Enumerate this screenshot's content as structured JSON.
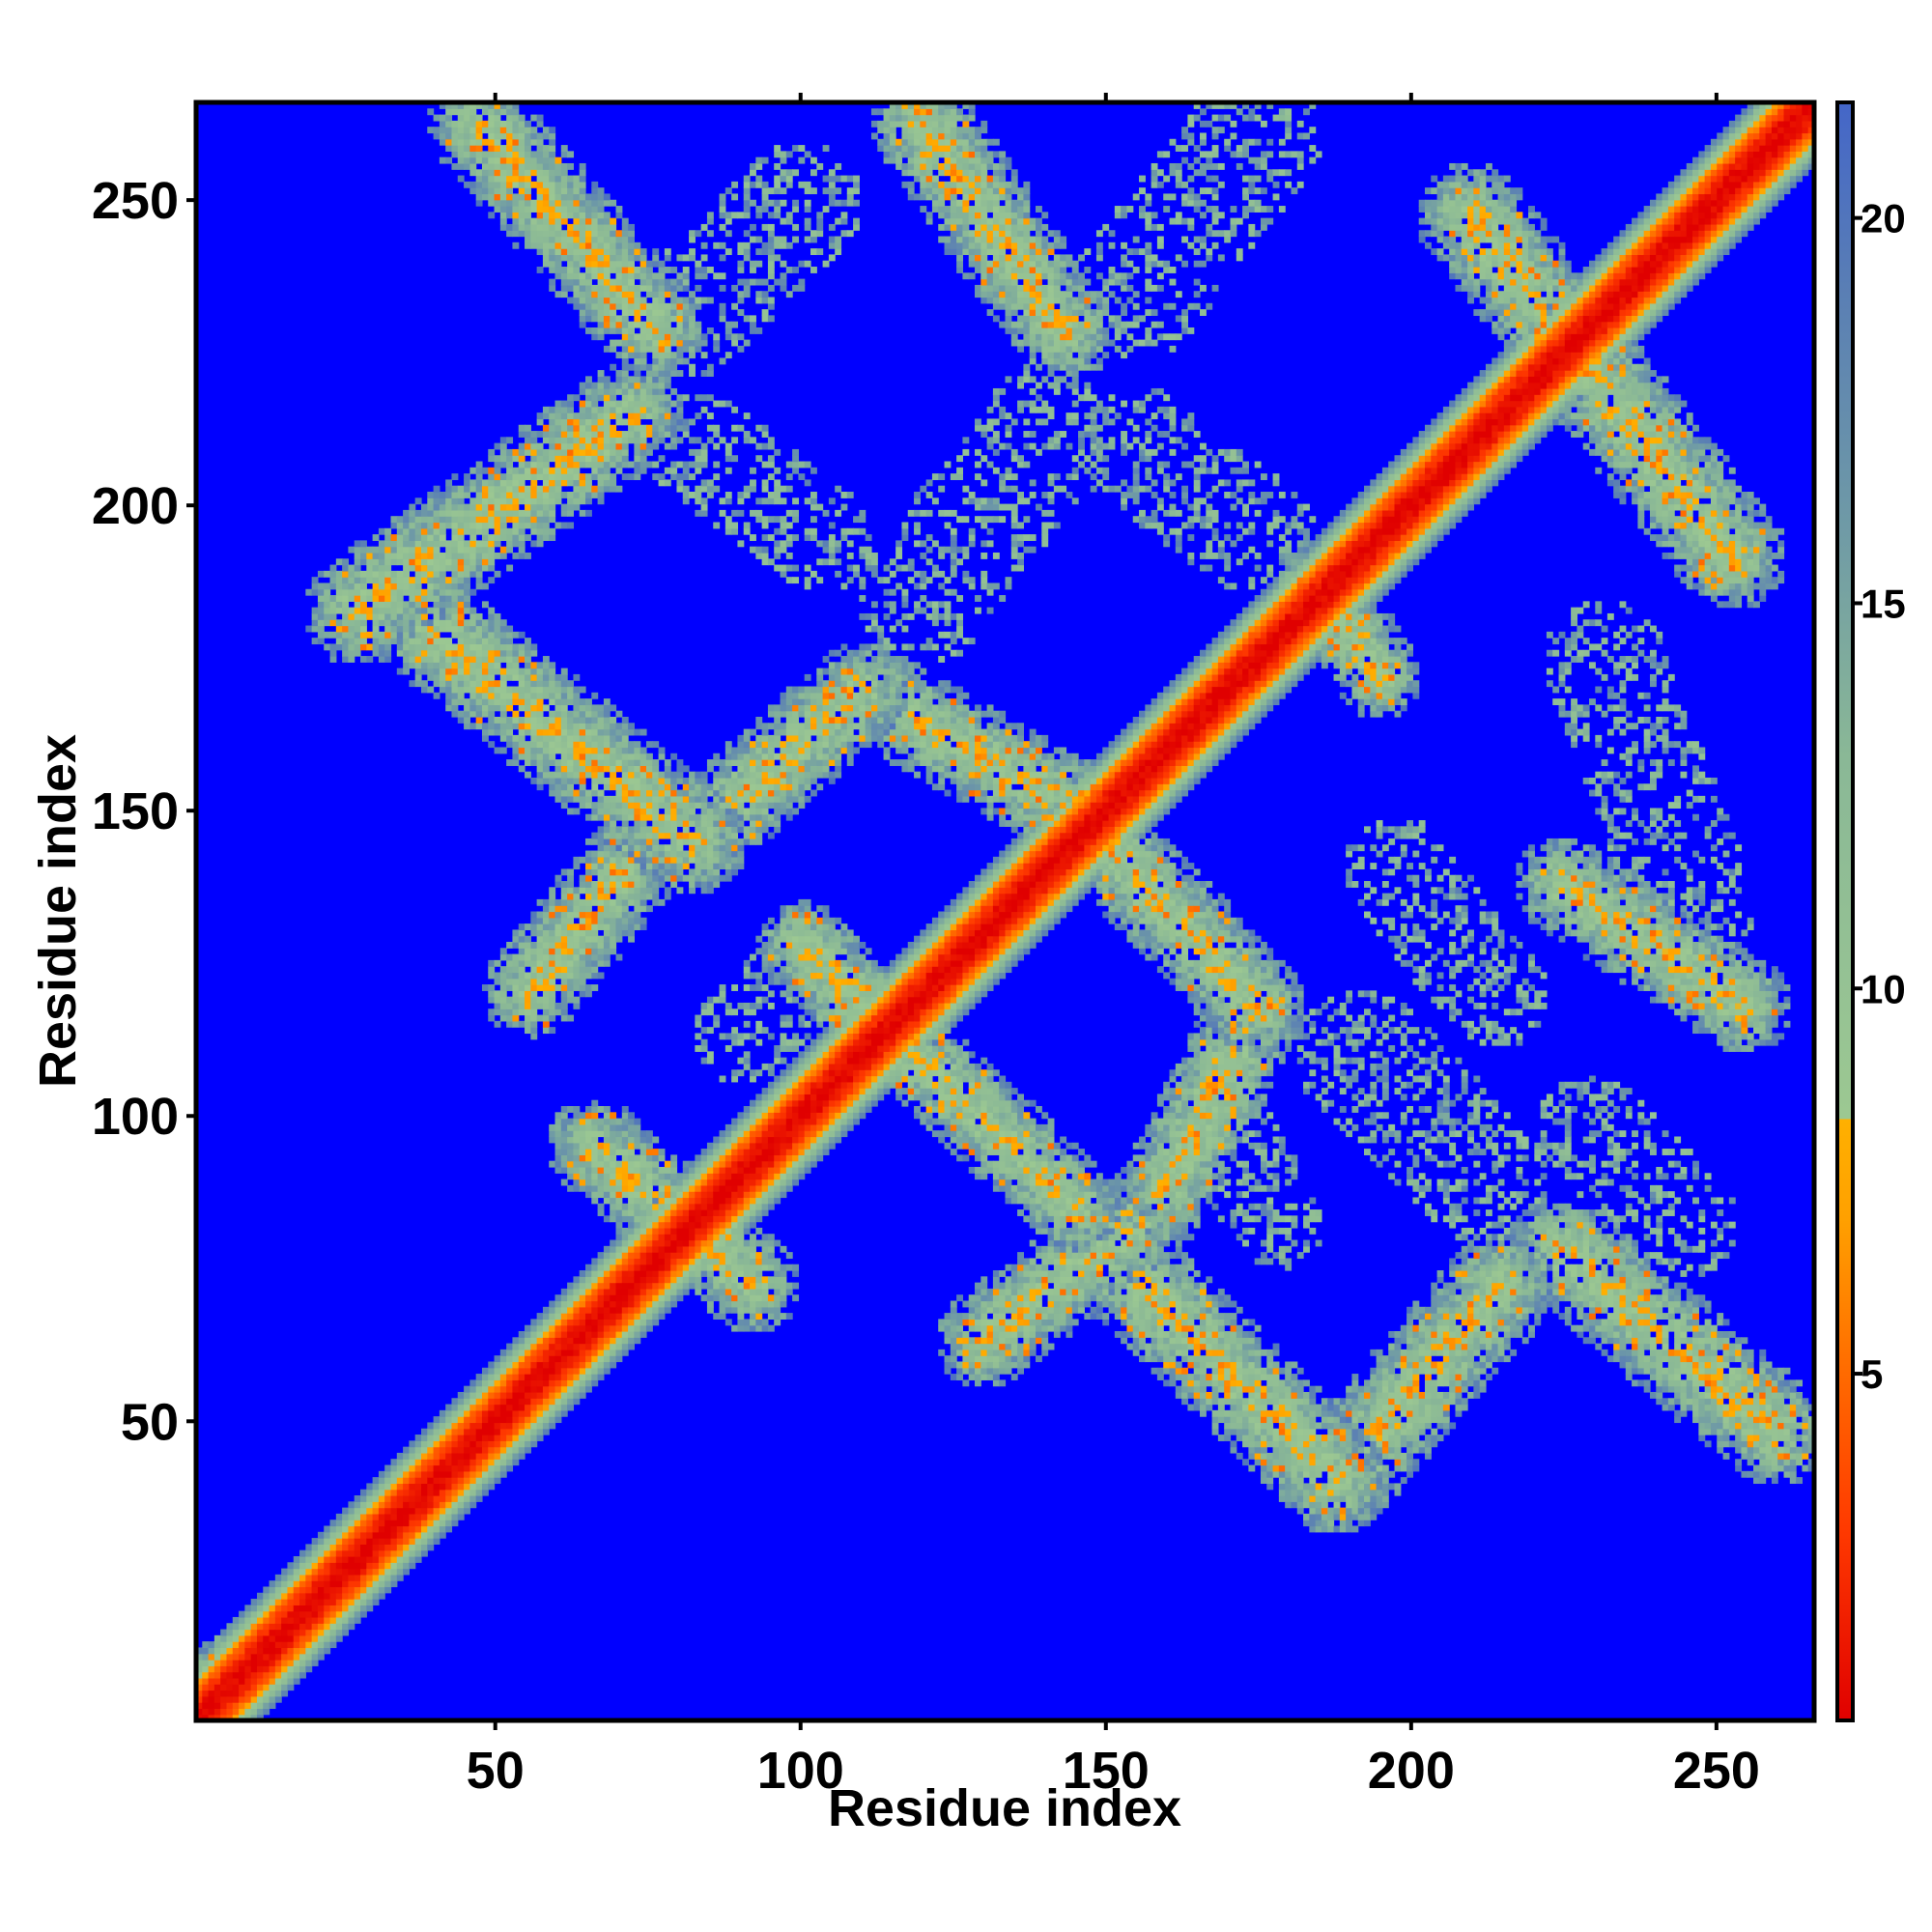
{
  "chart_data": {
    "type": "heatmap",
    "title": "",
    "xlabel": "Residue index",
    "ylabel": "Residue index",
    "xlim": [
      1,
      266
    ],
    "ylim": [
      1,
      266
    ],
    "x_ticks": [
      50,
      100,
      150,
      200,
      250
    ],
    "y_ticks": [
      50,
      100,
      150,
      200,
      250
    ],
    "colorbar": {
      "range": [
        0.5,
        21.5
      ],
      "ticks": [
        5,
        10,
        15,
        20
      ],
      "stops": [
        {
          "value": 0.5,
          "color": "#e00000"
        },
        {
          "value": 3.0,
          "color": "#ff3a00"
        },
        {
          "value": 5.0,
          "color": "#ff6a00"
        },
        {
          "value": 7.0,
          "color": "#ffa000"
        },
        {
          "value": 8.3,
          "color": "#ffb000"
        },
        {
          "value": 8.31,
          "color": "#9cc892"
        },
        {
          "value": 13.0,
          "color": "#8ab896"
        },
        {
          "value": 16.0,
          "color": "#6f9aa6"
        },
        {
          "value": 19.0,
          "color": "#5a7fb4"
        },
        {
          "value": 21.5,
          "color": "#4466c8"
        }
      ]
    },
    "background_color": "#0000ff",
    "diagonal": {
      "width": 7.5
    },
    "contact_bands": [
      {
        "points": [
          [
            47,
            263
          ],
          [
            76,
            229
          ]
        ],
        "width": 8.5
      },
      {
        "points": [
          [
            120,
            263
          ],
          [
            143,
            229
          ]
        ],
        "width": 8.5
      },
      {
        "points": [
          [
            210,
            248
          ],
          [
            253,
            192
          ]
        ],
        "width": 9.0
      },
      {
        "points": [
          [
            27,
            183
          ],
          [
            72,
            215
          ]
        ],
        "width": 9.0
      },
      {
        "points": [
          [
            33,
            185
          ],
          [
            82,
            145
          ]
        ],
        "width": 9.0
      },
      {
        "points": [
          [
            82,
            145
          ],
          [
            110,
            170
          ]
        ],
        "width": 8.0
      },
      {
        "points": [
          [
            110,
            170
          ],
          [
            145,
            150
          ]
        ],
        "width": 8.0
      },
      {
        "points": [
          [
            145,
            150
          ],
          [
            175,
            118
          ]
        ],
        "width": 8.0
      },
      {
        "points": [
          [
            175,
            118
          ],
          [
            160,
            88
          ]
        ],
        "width": 8.0
      },
      {
        "points": [
          [
            55,
            120
          ],
          [
            75,
            145
          ]
        ],
        "width": 8.0
      },
      {
        "points": [
          [
            100,
            128
          ],
          [
            145,
            85
          ]
        ],
        "width": 7.5
      },
      {
        "points": [
          [
            66,
            95
          ],
          [
            92,
            72
          ]
        ],
        "width": 8.0
      },
      {
        "points": [
          [
            130,
            63
          ],
          [
            158,
            85
          ]
        ],
        "width": 8.0
      },
      {
        "points": [
          [
            150,
            78
          ],
          [
            188,
            40
          ]
        ],
        "width": 9.0
      },
      {
        "points": [
          [
            188,
            40
          ],
          [
            215,
            72
          ]
        ],
        "width": 9.0
      },
      {
        "points": [
          [
            225,
            78
          ],
          [
            260,
            48
          ]
        ],
        "width": 9.0
      },
      {
        "points": [
          [
            225,
            138
          ],
          [
            255,
            118
          ]
        ],
        "width": 8.0
      },
      {
        "points": [
          [
            185,
            188
          ],
          [
            195,
            172
          ]
        ],
        "width": 7.0
      },
      {
        "points": [
          [
            4,
            8
          ],
          [
            20,
            20
          ]
        ],
        "width": 5.5
      }
    ],
    "sparse_regions": [
      {
        "points": [
          [
            80,
            230
          ],
          [
            100,
            250
          ]
        ],
        "width": 10
      },
      {
        "points": [
          [
            155,
            235
          ],
          [
            175,
            262
          ]
        ],
        "width": 11
      },
      {
        "points": [
          [
            83,
            210
          ],
          [
            103,
            195
          ]
        ],
        "width": 9
      },
      {
        "points": [
          [
            120,
            185
          ],
          [
            140,
            212
          ]
        ],
        "width": 11
      },
      {
        "points": [
          [
            155,
            210
          ],
          [
            175,
            195
          ]
        ],
        "width": 10
      },
      {
        "points": [
          [
            232,
            175
          ],
          [
            247,
            135
          ]
        ],
        "width": 10
      },
      {
        "points": [
          [
            198,
            140
          ],
          [
            214,
            120
          ]
        ],
        "width": 9
      },
      {
        "points": [
          [
            192,
            110
          ],
          [
            212,
            90
          ]
        ],
        "width": 11
      },
      {
        "points": [
          [
            230,
            98
          ],
          [
            245,
            82
          ]
        ],
        "width": 9
      },
      {
        "points": [
          [
            168,
            100
          ],
          [
            178,
            82
          ]
        ],
        "width": 8
      },
      {
        "points": [
          [
            90,
            113
          ],
          [
            102,
            125
          ]
        ],
        "width": 8
      }
    ]
  }
}
